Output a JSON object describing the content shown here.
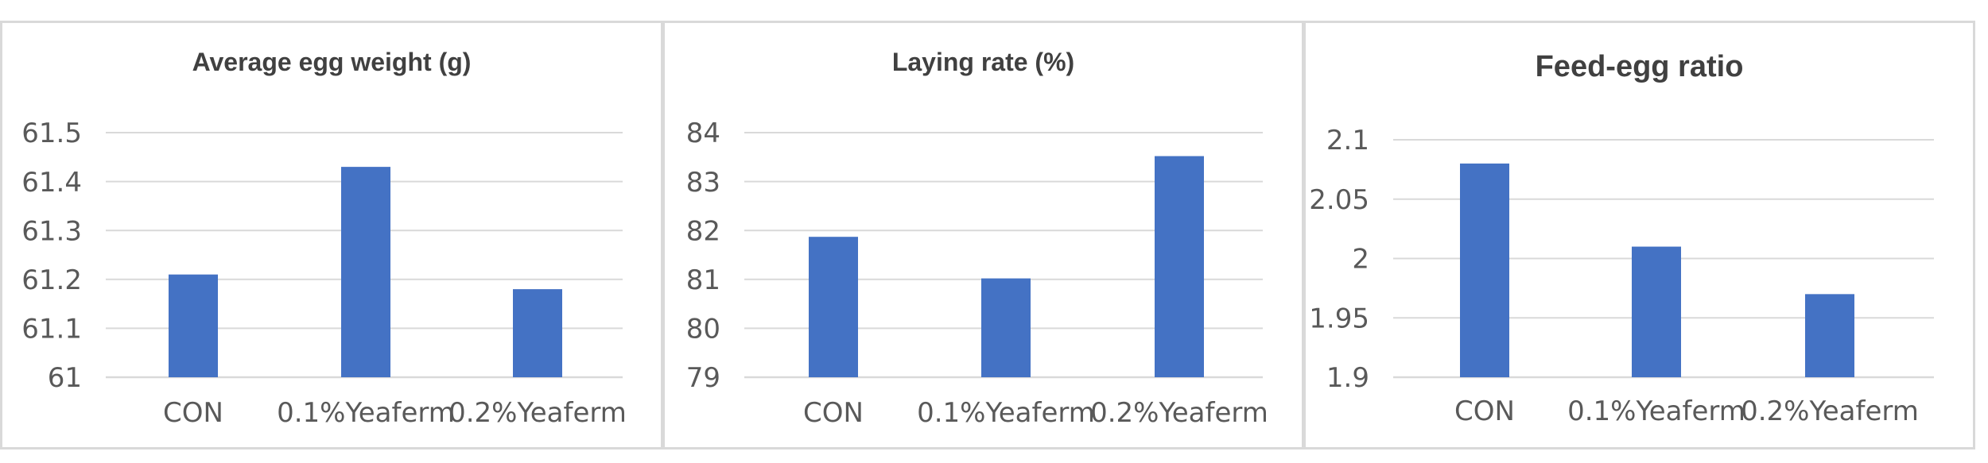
{
  "chart_data": [
    {
      "type": "bar",
      "title": "Average egg weight (g)",
      "categories": [
        "CON",
        "0.1%Yeaferm",
        "0.2%Yeaferm"
      ],
      "values": [
        61.21,
        61.43,
        61.18
      ],
      "ylim": [
        61,
        61.5
      ],
      "yticks": [
        "61",
        "61.1",
        "61.2",
        "61.3",
        "61.4",
        "61.5"
      ],
      "xlabel": "",
      "ylabel": "",
      "grid": true,
      "legend": "none",
      "bar_color": "#4472C4"
    },
    {
      "type": "bar",
      "title": "Laying rate (%)",
      "categories": [
        "CON",
        "0.1%Yeaferm",
        "0.2%Yeaferm"
      ],
      "values": [
        81.87,
        81.02,
        83.52
      ],
      "ylim": [
        79,
        84
      ],
      "yticks": [
        "79",
        "80",
        "81",
        "82",
        "83",
        "84"
      ],
      "xlabel": "",
      "ylabel": "",
      "grid": true,
      "legend": "none",
      "bar_color": "#4472C4"
    },
    {
      "type": "bar",
      "title": "Feed-egg ratio",
      "categories": [
        "CON",
        "0.1%Yeaferm",
        "0.2%Yeaferm"
      ],
      "values": [
        2.08,
        2.01,
        1.97
      ],
      "ylim": [
        1.9,
        2.1
      ],
      "yticks": [
        "1.9",
        "1.95",
        "2",
        "2.05",
        "2.1"
      ],
      "xlabel": "",
      "ylabel": "",
      "grid": true,
      "legend": "none",
      "bar_color": "#4472C4"
    }
  ]
}
